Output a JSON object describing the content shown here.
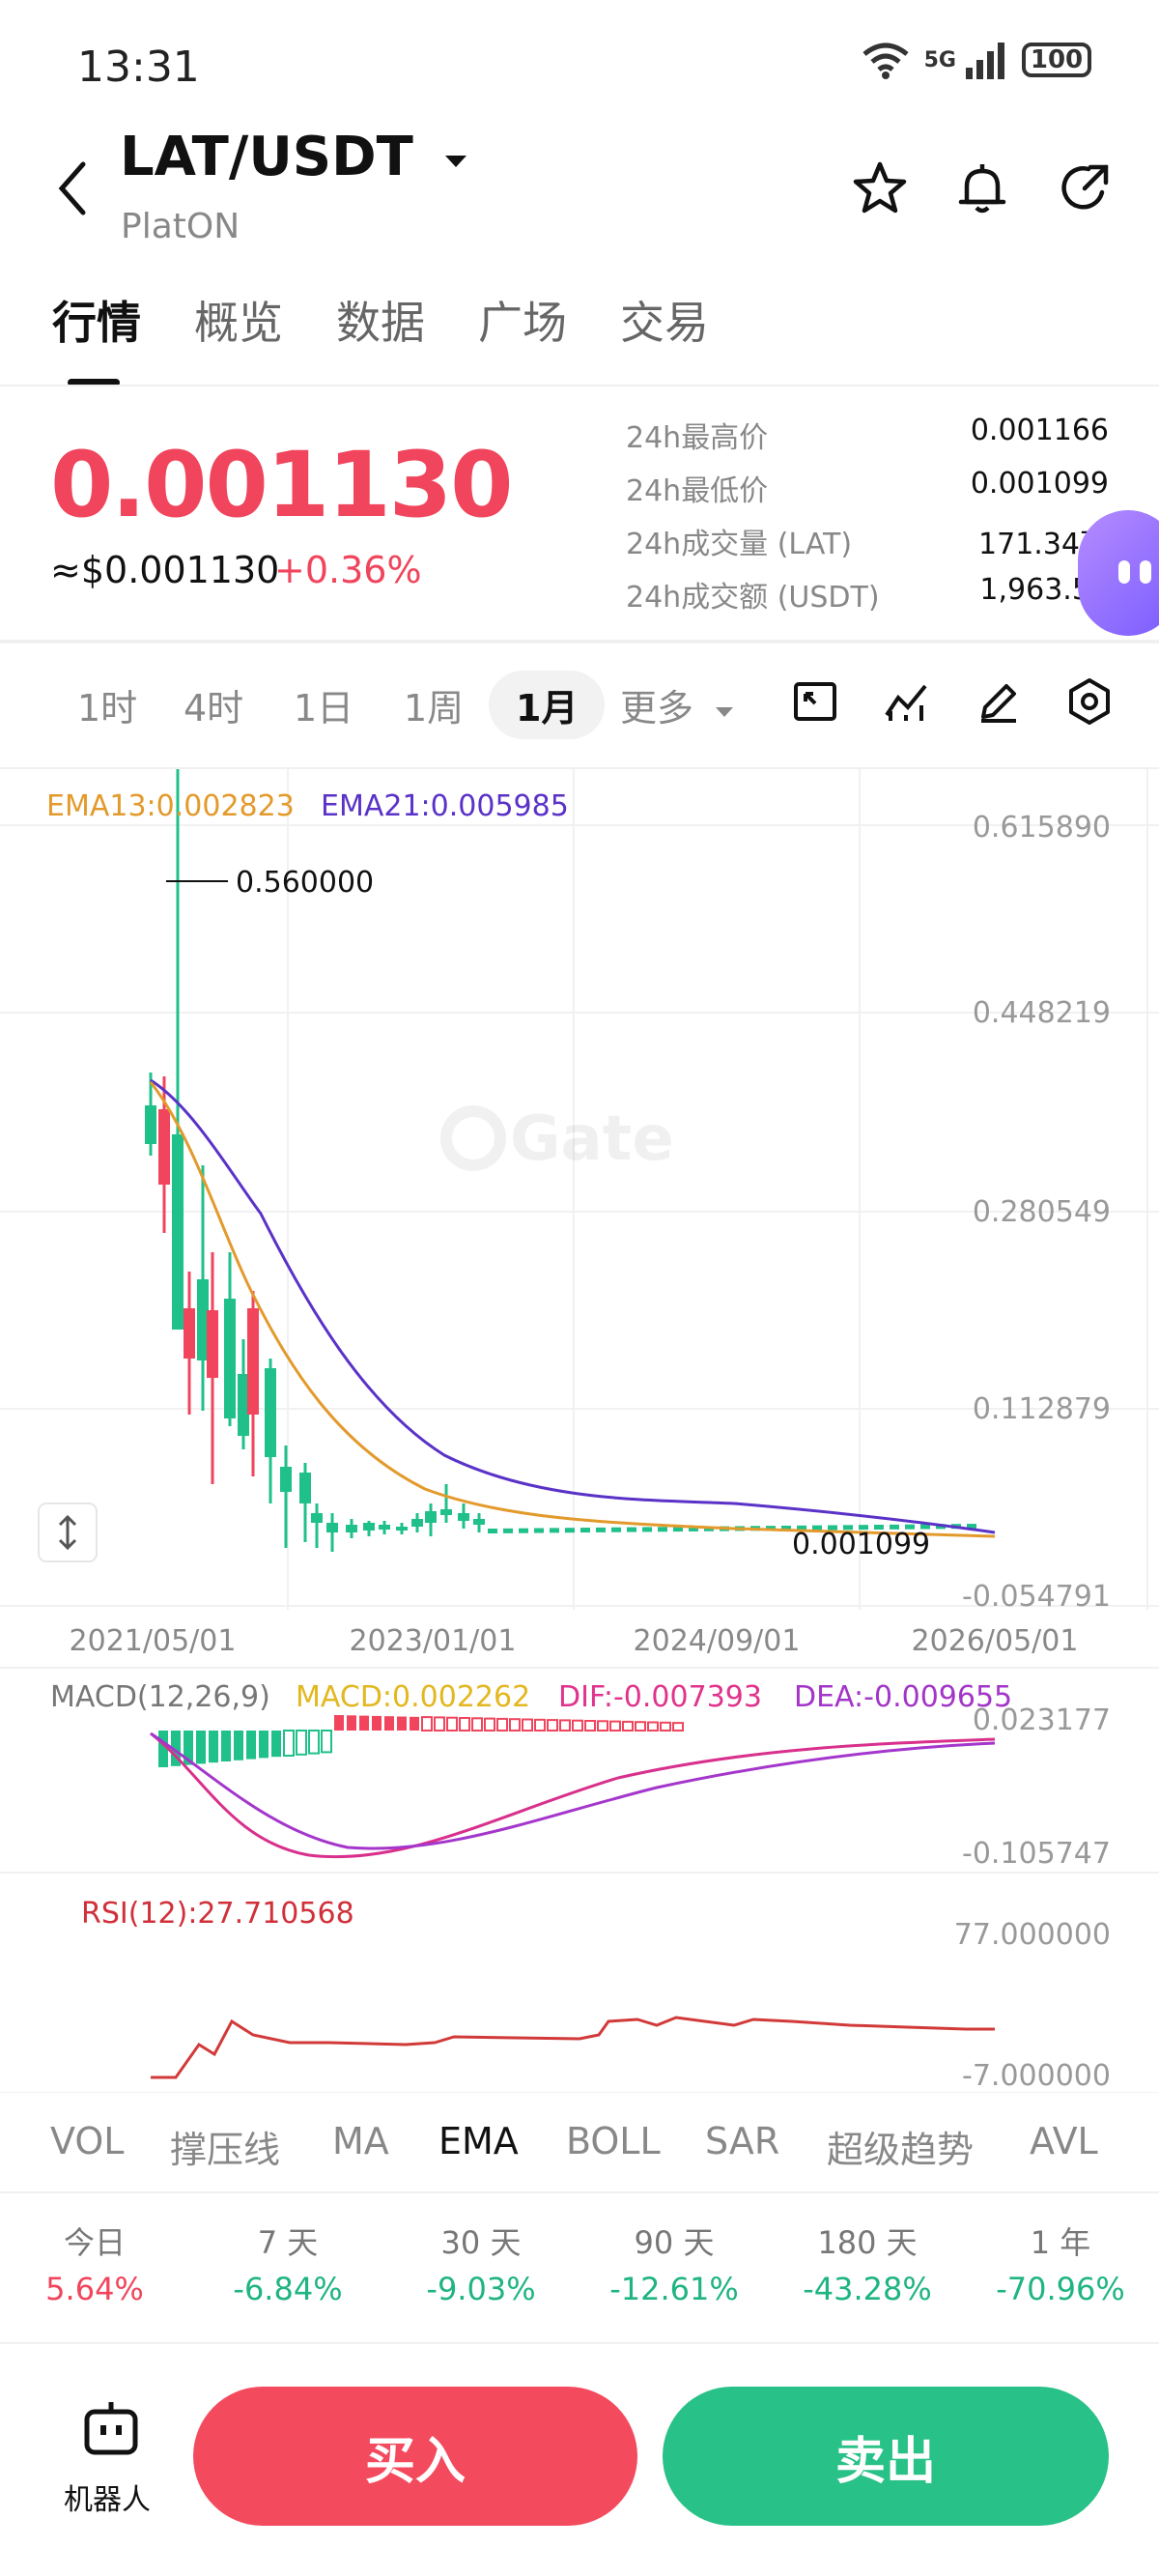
{
  "status_bar": {
    "time": "13:31",
    "network": "5G",
    "battery": "100"
  },
  "header": {
    "pair": "LAT/USDT",
    "subtitle": "PlatON"
  },
  "tabs": [
    "行情",
    "概览",
    "数据",
    "广场",
    "交易"
  ],
  "price": {
    "last": "0.001130",
    "usd": "≈$0.001130",
    "change": "+0.36%",
    "stats": [
      {
        "label": "24h最高价",
        "value": "0.001166"
      },
      {
        "label": "24h最低价",
        "value": "0.001099"
      },
      {
        "label": "24h成交量 (LAT)",
        "value": "171.34万"
      },
      {
        "label": "24h成交额 (USDT)",
        "value": "1,963.52"
      }
    ]
  },
  "intervals": [
    "1时",
    "4时",
    "1日",
    "1周",
    "1月",
    "更多"
  ],
  "selected_interval": "1月",
  "main_chart": {
    "ema13_label": "EMA13:0.002823",
    "ema21_label": "EMA21:0.005985",
    "high_marker": "0.560000",
    "low_marker": "0.001099",
    "watermark": "Gate",
    "y_ticks": [
      "0.615890",
      "0.448219",
      "0.280549",
      "0.112879",
      "-0.054791"
    ],
    "x_ticks": [
      "2021/05/01",
      "2023/01/01",
      "2024/09/01",
      "2026/05/01"
    ],
    "colors": {
      "up": "#f0455c",
      "down": "#1fc08a",
      "ema13": "#e39a2c",
      "ema21": "#5a32c8"
    }
  },
  "macd": {
    "title": "MACD(12,26,9)",
    "macd_label": "MACD:0.002262",
    "dif_label": "DIF:-0.007393",
    "dea_label": "DEA:-0.009655",
    "y_ticks": [
      "0.023177",
      "-0.105747"
    ]
  },
  "rsi": {
    "label": "RSI(12):27.710568",
    "y_ticks": [
      "77.000000",
      "-7.000000"
    ]
  },
  "indicator_tabs": [
    "VOL",
    "撑压线",
    "MA",
    "EMA",
    "BOLL",
    "SAR",
    "超级趋势",
    "AVL"
  ],
  "selected_indicator": "EMA",
  "performance": [
    {
      "label": "今日",
      "value": "5.64%",
      "dir": "up"
    },
    {
      "label": "7 天",
      "value": "-6.84%",
      "dir": "down"
    },
    {
      "label": "30 天",
      "value": "-9.03%",
      "dir": "down"
    },
    {
      "label": "90 天",
      "value": "-12.61%",
      "dir": "down"
    },
    {
      "label": "180 天",
      "value": "-43.28%",
      "dir": "down"
    },
    {
      "label": "1 年",
      "value": "-70.96%",
      "dir": "down"
    }
  ],
  "bottom": {
    "robot_label": "机器人",
    "buy": "买入",
    "sell": "卖出"
  }
}
